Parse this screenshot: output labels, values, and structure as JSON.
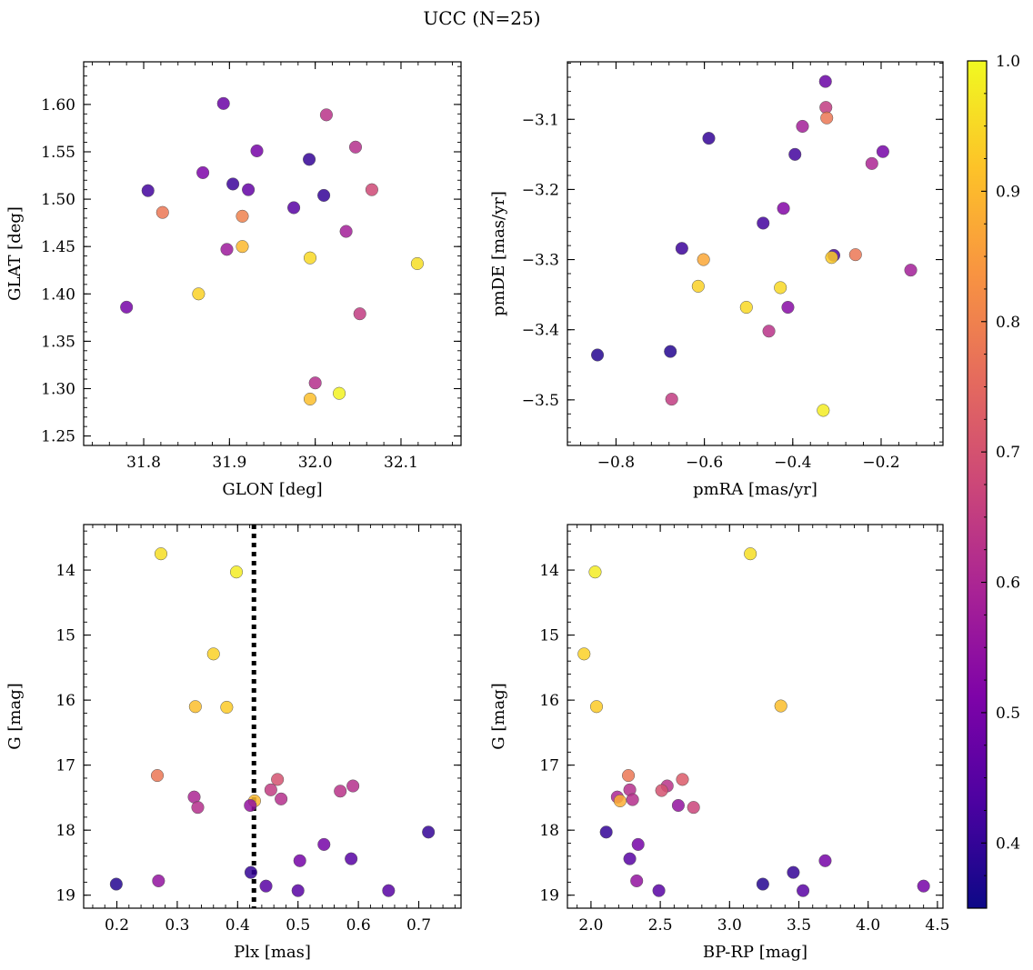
{
  "figure": {
    "title": "UCC (N=25)"
  },
  "colorbar": {
    "colormap": "plasma",
    "range": [
      0.35,
      1.0
    ],
    "ticks": [
      0.4,
      0.5,
      0.6,
      0.7,
      0.8,
      0.9,
      1.0
    ],
    "tick_labels": [
      "0.4",
      "0.5",
      "0.6",
      "0.7",
      "0.8",
      "0.9",
      "1.0"
    ]
  },
  "chart_data": [
    {
      "type": "scatter",
      "xlabel": "GLON [deg]",
      "ylabel": "GLAT [deg]",
      "xlim": [
        31.73,
        32.17
      ],
      "ylim": [
        1.24,
        1.645
      ],
      "xticks": [
        31.8,
        31.9,
        32.0,
        32.1
      ],
      "xtick_labels": [
        "31.8",
        "31.9",
        "32.0",
        "32.1"
      ],
      "yticks": [
        1.25,
        1.3,
        1.35,
        1.4,
        1.45,
        1.5,
        1.55,
        1.6
      ],
      "ytick_labels": [
        "1.25",
        "1.30",
        "1.35",
        "1.40",
        "1.45",
        "1.50",
        "1.55",
        "1.60"
      ],
      "y_inverted": false,
      "points": [
        {
          "x": 31.893,
          "y": 1.601,
          "c": 0.48
        },
        {
          "x": 32.013,
          "y": 1.589,
          "c": 0.63
        },
        {
          "x": 32.047,
          "y": 1.555,
          "c": 0.62
        },
        {
          "x": 31.932,
          "y": 1.551,
          "c": 0.5
        },
        {
          "x": 31.993,
          "y": 1.542,
          "c": 0.4
        },
        {
          "x": 31.869,
          "y": 1.528,
          "c": 0.51
        },
        {
          "x": 31.904,
          "y": 1.516,
          "c": 0.41
        },
        {
          "x": 31.805,
          "y": 1.509,
          "c": 0.42
        },
        {
          "x": 31.922,
          "y": 1.51,
          "c": 0.47
        },
        {
          "x": 32.066,
          "y": 1.51,
          "c": 0.68
        },
        {
          "x": 32.01,
          "y": 1.504,
          "c": 0.4
        },
        {
          "x": 31.975,
          "y": 1.491,
          "c": 0.45
        },
        {
          "x": 31.822,
          "y": 1.486,
          "c": 0.78
        },
        {
          "x": 31.915,
          "y": 1.482,
          "c": 0.8
        },
        {
          "x": 32.036,
          "y": 1.466,
          "c": 0.58
        },
        {
          "x": 31.915,
          "y": 1.45,
          "c": 0.9
        },
        {
          "x": 31.897,
          "y": 1.447,
          "c": 0.57
        },
        {
          "x": 31.994,
          "y": 1.438,
          "c": 0.95
        },
        {
          "x": 32.119,
          "y": 1.432,
          "c": 0.96
        },
        {
          "x": 31.864,
          "y": 1.4,
          "c": 0.94
        },
        {
          "x": 31.78,
          "y": 1.386,
          "c": 0.5
        },
        {
          "x": 32.052,
          "y": 1.379,
          "c": 0.65
        },
        {
          "x": 32.0,
          "y": 1.306,
          "c": 0.62
        },
        {
          "x": 32.028,
          "y": 1.295,
          "c": 0.99
        },
        {
          "x": 31.994,
          "y": 1.289,
          "c": 0.91
        }
      ]
    },
    {
      "type": "scatter",
      "xlabel": "pmRA [mas/yr]",
      "ylabel": "pmDE [mas/yr]",
      "xlim": [
        -0.91,
        -0.06
      ],
      "ylim": [
        -3.565,
        -3.018
      ],
      "xticks": [
        -0.8,
        -0.6,
        -0.4,
        -0.2
      ],
      "xtick_labels": [
        "−0.8",
        "−0.6",
        "−0.4",
        "−0.2"
      ],
      "yticks": [
        -3.5,
        -3.4,
        -3.3,
        -3.2,
        -3.1
      ],
      "ytick_labels": [
        "−3.5",
        "−3.4",
        "−3.3",
        "−3.2",
        "−3.1"
      ],
      "y_inverted": false,
      "points": [
        {
          "x": -0.326,
          "y": -3.046,
          "c": 0.48
        },
        {
          "x": -0.325,
          "y": -3.083,
          "c": 0.65
        },
        {
          "x": -0.323,
          "y": -3.098,
          "c": 0.78
        },
        {
          "x": -0.378,
          "y": -3.11,
          "c": 0.58
        },
        {
          "x": -0.59,
          "y": -3.127,
          "c": 0.4
        },
        {
          "x": -0.196,
          "y": -3.146,
          "c": 0.5
        },
        {
          "x": -0.395,
          "y": -3.15,
          "c": 0.42
        },
        {
          "x": -0.221,
          "y": -3.163,
          "c": 0.6
        },
        {
          "x": -0.421,
          "y": -3.227,
          "c": 0.52
        },
        {
          "x": -0.467,
          "y": -3.248,
          "c": 0.42
        },
        {
          "x": -0.651,
          "y": -3.284,
          "c": 0.41
        },
        {
          "x": -0.258,
          "y": -3.293,
          "c": 0.78
        },
        {
          "x": -0.307,
          "y": -3.294,
          "c": 0.43
        },
        {
          "x": -0.312,
          "y": -3.297,
          "c": 0.93
        },
        {
          "x": -0.602,
          "y": -3.3,
          "c": 0.87
        },
        {
          "x": -0.133,
          "y": -3.315,
          "c": 0.58
        },
        {
          "x": -0.614,
          "y": -3.338,
          "c": 0.94
        },
        {
          "x": -0.428,
          "y": -3.34,
          "c": 0.95
        },
        {
          "x": -0.505,
          "y": -3.368,
          "c": 0.95
        },
        {
          "x": -0.411,
          "y": -3.368,
          "c": 0.53
        },
        {
          "x": -0.454,
          "y": -3.402,
          "c": 0.63
        },
        {
          "x": -0.677,
          "y": -3.431,
          "c": 0.38
        },
        {
          "x": -0.842,
          "y": -3.436,
          "c": 0.38
        },
        {
          "x": -0.674,
          "y": -3.499,
          "c": 0.65
        },
        {
          "x": -0.331,
          "y": -3.515,
          "c": 0.98
        }
      ]
    },
    {
      "type": "scatter",
      "xlabel": "Plx [mas]",
      "ylabel": "G [mag]",
      "xlim": [
        0.145,
        0.77
      ],
      "ylim": [
        19.2,
        13.3
      ],
      "xticks": [
        0.2,
        0.3,
        0.4,
        0.5,
        0.6,
        0.7
      ],
      "xtick_labels": [
        "0.2",
        "0.3",
        "0.4",
        "0.5",
        "0.6",
        "0.7"
      ],
      "yticks": [
        14,
        15,
        16,
        17,
        18,
        19
      ],
      "ytick_labels": [
        "14",
        "15",
        "16",
        "17",
        "18",
        "19"
      ],
      "y_inverted": true,
      "vline": {
        "x": 0.427,
        "style": "dotted",
        "color": "#000000"
      },
      "points": [
        {
          "x": 0.273,
          "y": 13.75,
          "c": 0.96
        },
        {
          "x": 0.398,
          "y": 14.03,
          "c": 0.98
        },
        {
          "x": 0.36,
          "y": 15.29,
          "c": 0.94
        },
        {
          "x": 0.33,
          "y": 16.1,
          "c": 0.91
        },
        {
          "x": 0.382,
          "y": 16.11,
          "c": 0.93
        },
        {
          "x": 0.267,
          "y": 17.16,
          "c": 0.78
        },
        {
          "x": 0.466,
          "y": 17.22,
          "c": 0.7
        },
        {
          "x": 0.591,
          "y": 17.32,
          "c": 0.62
        },
        {
          "x": 0.455,
          "y": 17.38,
          "c": 0.65
        },
        {
          "x": 0.57,
          "y": 17.4,
          "c": 0.63
        },
        {
          "x": 0.328,
          "y": 17.49,
          "c": 0.6
        },
        {
          "x": 0.472,
          "y": 17.52,
          "c": 0.62
        },
        {
          "x": 0.428,
          "y": 17.55,
          "c": 0.9
        },
        {
          "x": 0.421,
          "y": 17.62,
          "c": 0.55
        },
        {
          "x": 0.334,
          "y": 17.65,
          "c": 0.62
        },
        {
          "x": 0.716,
          "y": 18.03,
          "c": 0.4
        },
        {
          "x": 0.543,
          "y": 18.22,
          "c": 0.5
        },
        {
          "x": 0.588,
          "y": 18.44,
          "c": 0.45
        },
        {
          "x": 0.503,
          "y": 18.47,
          "c": 0.5
        },
        {
          "x": 0.422,
          "y": 18.65,
          "c": 0.4
        },
        {
          "x": 0.269,
          "y": 18.78,
          "c": 0.55
        },
        {
          "x": 0.199,
          "y": 18.83,
          "c": 0.38
        },
        {
          "x": 0.447,
          "y": 18.86,
          "c": 0.45
        },
        {
          "x": 0.5,
          "y": 18.93,
          "c": 0.45
        },
        {
          "x": 0.65,
          "y": 18.93,
          "c": 0.45
        }
      ]
    },
    {
      "type": "scatter",
      "xlabel": "BP-RP [mag]",
      "ylabel": "G [mag]",
      "xlim": [
        1.83,
        4.54
      ],
      "ylim": [
        19.2,
        13.3
      ],
      "xticks": [
        2.0,
        2.5,
        3.0,
        3.5,
        4.0,
        4.5
      ],
      "xtick_labels": [
        "2.0",
        "2.5",
        "3.0",
        "3.5",
        "4.0",
        "4.5"
      ],
      "yticks": [
        14,
        15,
        16,
        17,
        18,
        19
      ],
      "ytick_labels": [
        "14",
        "15",
        "16",
        "17",
        "18",
        "19"
      ],
      "y_inverted": true,
      "points": [
        {
          "x": 3.15,
          "y": 13.75,
          "c": 0.96
        },
        {
          "x": 2.03,
          "y": 14.03,
          "c": 0.98
        },
        {
          "x": 1.95,
          "y": 15.29,
          "c": 0.94
        },
        {
          "x": 2.04,
          "y": 16.1,
          "c": 0.93
        },
        {
          "x": 3.37,
          "y": 16.09,
          "c": 0.91
        },
        {
          "x": 2.27,
          "y": 17.16,
          "c": 0.78
        },
        {
          "x": 2.66,
          "y": 17.22,
          "c": 0.72
        },
        {
          "x": 2.55,
          "y": 17.32,
          "c": 0.63
        },
        {
          "x": 2.28,
          "y": 17.38,
          "c": 0.62
        },
        {
          "x": 2.51,
          "y": 17.39,
          "c": 0.7
        },
        {
          "x": 2.19,
          "y": 17.49,
          "c": 0.6
        },
        {
          "x": 2.3,
          "y": 17.53,
          "c": 0.62
        },
        {
          "x": 2.21,
          "y": 17.55,
          "c": 0.88
        },
        {
          "x": 2.63,
          "y": 17.62,
          "c": 0.55
        },
        {
          "x": 2.74,
          "y": 17.65,
          "c": 0.67
        },
        {
          "x": 2.11,
          "y": 18.03,
          "c": 0.4
        },
        {
          "x": 2.34,
          "y": 18.22,
          "c": 0.5
        },
        {
          "x": 2.28,
          "y": 18.44,
          "c": 0.45
        },
        {
          "x": 3.69,
          "y": 18.47,
          "c": 0.5
        },
        {
          "x": 3.46,
          "y": 18.65,
          "c": 0.4
        },
        {
          "x": 2.33,
          "y": 18.78,
          "c": 0.55
        },
        {
          "x": 3.24,
          "y": 18.83,
          "c": 0.38
        },
        {
          "x": 4.4,
          "y": 18.86,
          "c": 0.5
        },
        {
          "x": 2.49,
          "y": 18.93,
          "c": 0.45
        },
        {
          "x": 3.53,
          "y": 18.93,
          "c": 0.45
        }
      ]
    }
  ]
}
